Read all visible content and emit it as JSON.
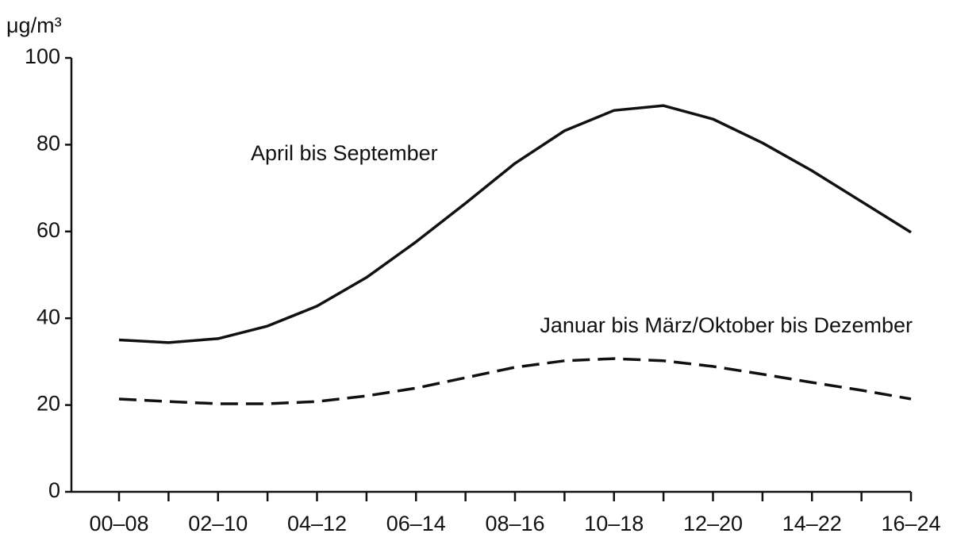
{
  "chart_data": {
    "type": "line",
    "y_label": "μg/m³",
    "categories": [
      "00–08",
      null,
      "02–10",
      null,
      "04–12",
      null,
      "06–14",
      null,
      "08–16",
      null,
      "10–18",
      null,
      "12–20",
      null,
      "14–22",
      null,
      "16–24"
    ],
    "series": [
      {
        "name": "April bis September",
        "color": "#111111",
        "dash": "solid",
        "values": [
          35,
          34.4,
          35.3,
          38.2,
          42.8,
          49.4,
          57.6,
          66.5,
          75.7,
          83.2,
          87.9,
          89,
          85.9,
          80.4,
          74,
          66.9,
          59.8
        ]
      },
      {
        "name": "Januar bis März/Oktober bis Dezember",
        "color": "#111111",
        "dash": "dashed",
        "values": [
          21.4,
          20.8,
          20.3,
          20.3,
          20.8,
          22.1,
          23.9,
          26.3,
          28.7,
          30.2,
          30.7,
          30.2,
          28.9,
          27.1,
          25.2,
          23.4,
          21.4
        ]
      }
    ],
    "ylim": [
      0,
      100
    ],
    "yticks": [
      0,
      20,
      40,
      60,
      80,
      100
    ]
  }
}
